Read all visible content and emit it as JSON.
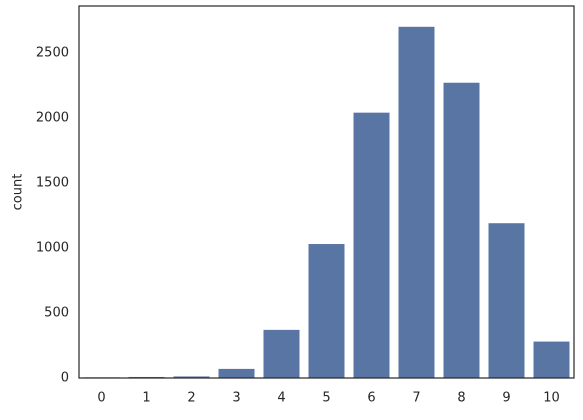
{
  "chart_data": {
    "type": "bar",
    "y_label": "count",
    "categories": [
      "0",
      "1",
      "2",
      "3",
      "4",
      "5",
      "6",
      "7",
      "8",
      "9",
      "10"
    ],
    "values": [
      5,
      8,
      12,
      70,
      370,
      1030,
      2040,
      2700,
      2270,
      1190,
      280
    ],
    "color": "#5975a4",
    "ylim": [
      0,
      2860
    ],
    "yticks": [
      0,
      500,
      1000,
      1500,
      2000,
      2500
    ],
    "grid": false
  }
}
